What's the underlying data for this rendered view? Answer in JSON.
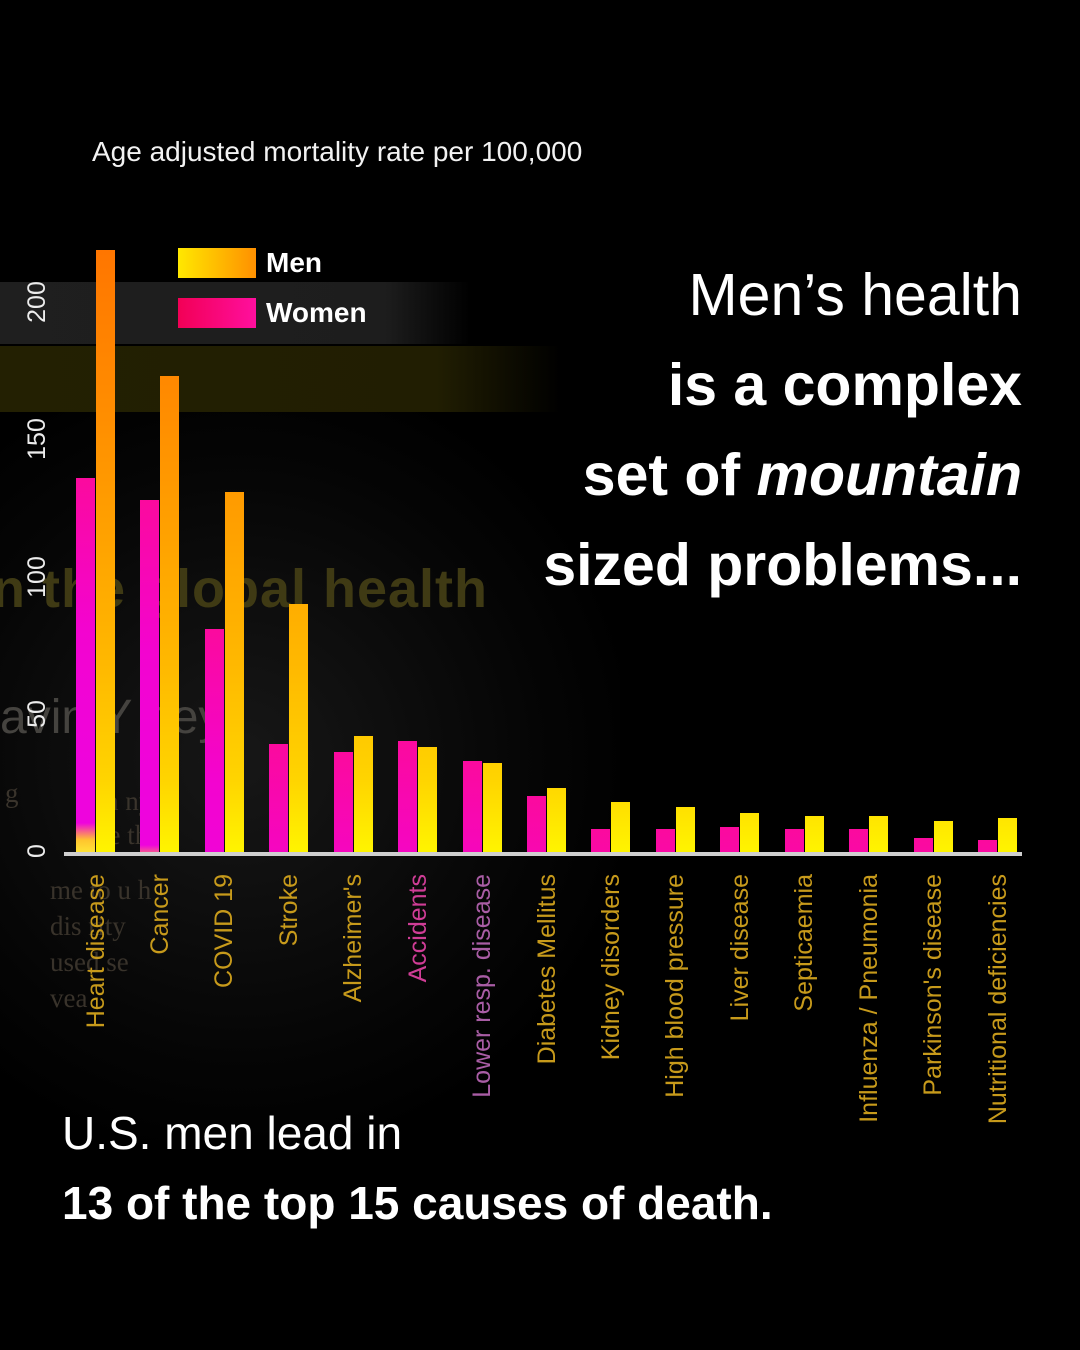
{
  "chart_title": "Age adjusted mortality rate per 100,000",
  "legend": {
    "men": "Men",
    "women": "Women"
  },
  "headline": {
    "line1": "Men’s health",
    "line2": "is a complex",
    "line3_prefix": "set of ",
    "line3_italic": "mountain",
    "line4": "sized problems..."
  },
  "footer": {
    "line1": "U.S. men lead in",
    "line2": "13 of the top 15 causes of death."
  },
  "chart_data": {
    "type": "bar",
    "title": "Age adjusted mortality rate per 100,000",
    "categories": [
      "Heart disease",
      "Cancer",
      "COVID 19",
      "Stroke",
      "Alzheimer's",
      "Accidents",
      "Lower resp. disease",
      "Diabetes Mellitus",
      "Kidney disorders",
      "High blood pressure",
      "Liver disease",
      "Septicaemia",
      "Influenza / Pneumonia",
      "Parkinson's disease",
      "Nutritional deficiencies"
    ],
    "series": [
      {
        "name": "Men",
        "values": [
          220,
          174,
          132,
          91,
          43,
          39,
          33,
          24,
          19,
          17,
          15,
          14,
          14,
          12,
          13
        ]
      },
      {
        "name": "Women",
        "values": [
          137,
          129,
          82,
          40,
          37,
          41,
          34,
          21,
          9,
          9,
          10,
          9,
          9,
          6,
          5
        ]
      }
    ],
    "yticks": [
      0,
      50,
      100,
      150,
      200
    ],
    "ylim": [
      0,
      222
    ],
    "grid": false,
    "legend_position": "top-left",
    "category_label_colors": {
      "default": "#c79a1b",
      "Accidents": "#cf3d96",
      "Lower resp. disease": "#a95da5"
    }
  },
  "colors": {
    "background": "#000000",
    "men_gradient_top": "#ff7500",
    "men_gradient_bottom": "#fff500",
    "women_gradient_top": "#fb0a9e",
    "women_gradient_mid": "#ee04dd",
    "women_gradient_bottom": "#fff23a",
    "axis": "#cfcfcf",
    "text": "#ffffff"
  },
  "ghost_fragments": {
    "headline": "n the global health",
    "byline": "avin Y ney",
    "paragraph": [
      "me to u   h",
      "dis   rity",
      "used se",
      "vea"
    ],
    "scatter": [
      "g",
      "n      ny",
      "ge    th"
    ]
  }
}
